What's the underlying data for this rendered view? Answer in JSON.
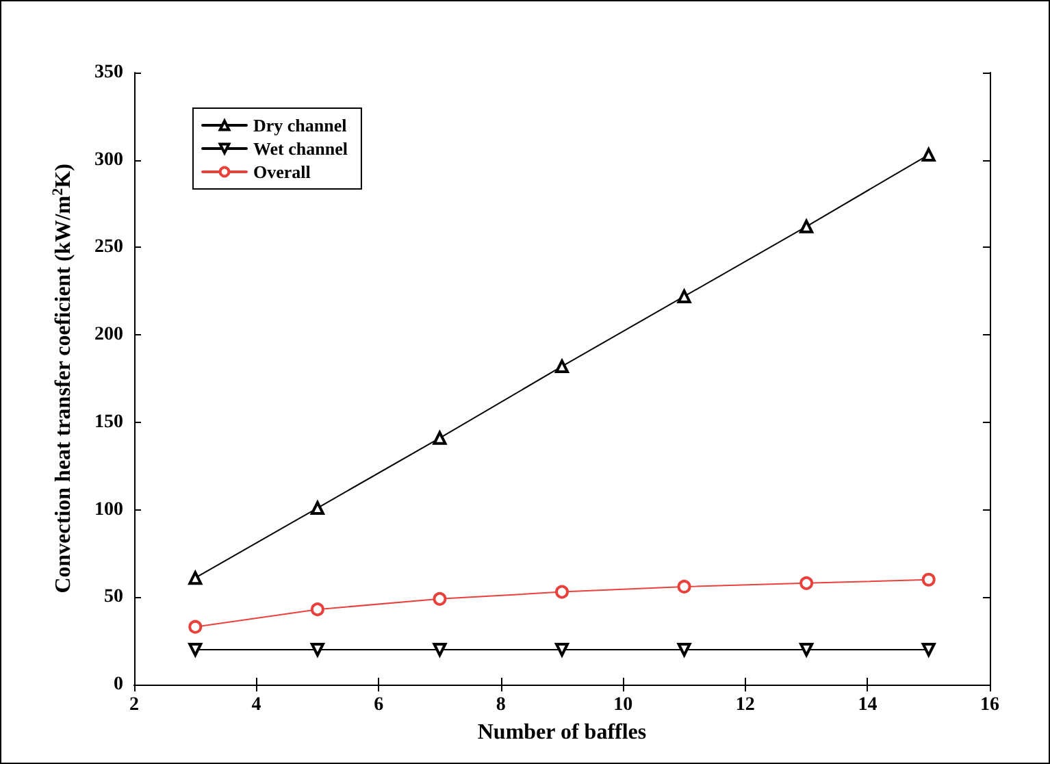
{
  "chart_data": {
    "type": "line",
    "xlabel": "Number of baffles",
    "ylabel": "Convection heat transfer coeficient (kW/m$^{2}$K)",
    "x": [
      3,
      5,
      7,
      9,
      11,
      13,
      15
    ],
    "series": [
      {
        "name": "Dry channel",
        "color": "#000000",
        "marker": "triangle",
        "values": [
          61,
          101,
          141,
          182,
          222,
          262,
          303
        ]
      },
      {
        "name": "Wet channel",
        "color": "#000000",
        "marker": "triangle-down",
        "values": [
          20,
          20,
          20,
          20,
          20,
          20,
          20
        ]
      },
      {
        "name": "Overall",
        "color": "#e8413c",
        "marker": "circle",
        "values": [
          33,
          43,
          49,
          53,
          56,
          58,
          60
        ]
      }
    ],
    "xlim": [
      2,
      16
    ],
    "xticks": [
      2,
      4,
      6,
      8,
      10,
      12,
      14,
      16
    ],
    "ylim": [
      0,
      350
    ],
    "yticks": [
      0,
      50,
      100,
      150,
      200,
      250,
      300,
      350
    ],
    "grid": false,
    "legend": "top left",
    "line_style": "solid"
  }
}
